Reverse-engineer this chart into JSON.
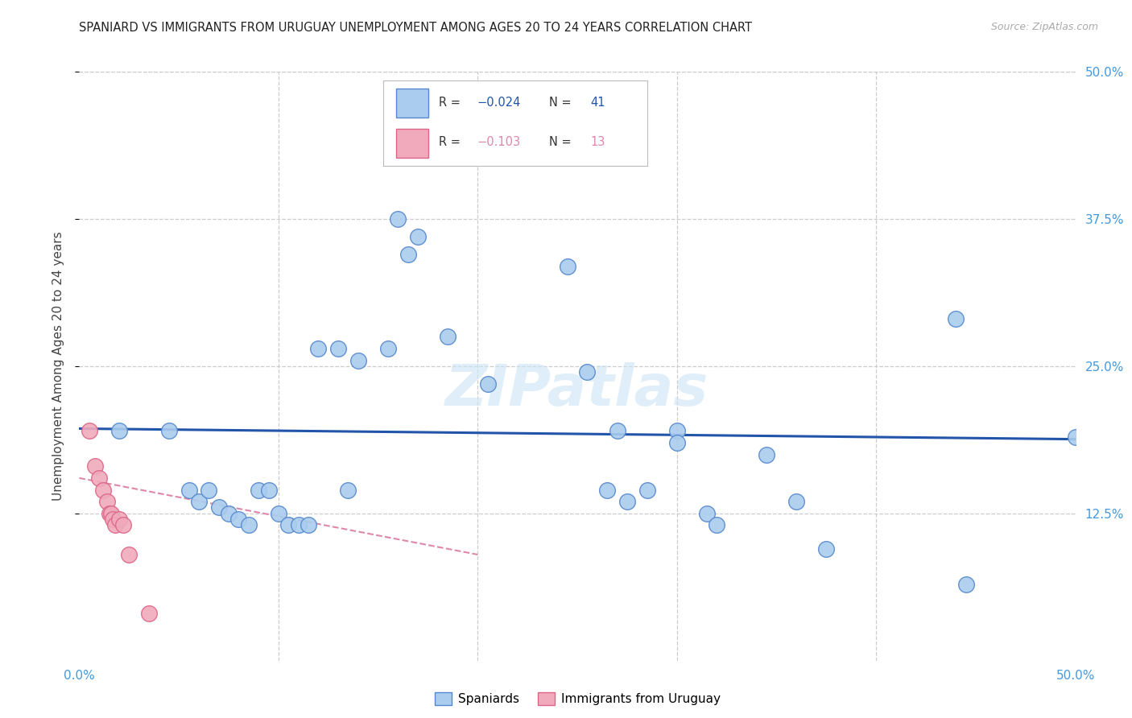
{
  "title": "SPANIARD VS IMMIGRANTS FROM URUGUAY UNEMPLOYMENT AMONG AGES 20 TO 24 YEARS CORRELATION CHART",
  "source": "Source: ZipAtlas.com",
  "ylabel": "Unemployment Among Ages 20 to 24 years",
  "xlim": [
    0,
    0.5
  ],
  "ylim": [
    0,
    0.5
  ],
  "xticks": [
    0.0,
    0.1,
    0.2,
    0.3,
    0.4,
    0.5
  ],
  "xticklabels": [
    "0.0%",
    "",
    "",
    "",
    "",
    "50.0%"
  ],
  "yticks": [
    0.125,
    0.25,
    0.375,
    0.5
  ],
  "yticklabels": [
    "12.5%",
    "25.0%",
    "37.5%",
    "50.0%"
  ],
  "blue_color": "#aaccee",
  "pink_color": "#f0aabb",
  "blue_edge_color": "#5588cc",
  "pink_edge_color": "#dd6688",
  "blue_line_color": "#2255aa",
  "pink_line_color": "#dd88aa",
  "grid_color": "#cccccc",
  "tick_color": "#4499dd",
  "watermark_color": "#cce4f5",
  "spaniards_x": [
    0.02,
    0.045,
    0.055,
    0.06,
    0.065,
    0.07,
    0.075,
    0.08,
    0.085,
    0.09,
    0.095,
    0.1,
    0.105,
    0.11,
    0.115,
    0.12,
    0.13,
    0.135,
    0.14,
    0.155,
    0.16,
    0.165,
    0.17,
    0.185,
    0.205,
    0.245,
    0.255,
    0.265,
    0.275,
    0.285,
    0.3,
    0.315,
    0.32,
    0.345,
    0.36,
    0.375,
    0.44,
    0.445,
    0.27,
    0.3,
    0.5
  ],
  "spaniards_y": [
    0.195,
    0.195,
    0.145,
    0.135,
    0.145,
    0.13,
    0.125,
    0.12,
    0.115,
    0.145,
    0.145,
    0.125,
    0.115,
    0.115,
    0.115,
    0.265,
    0.265,
    0.145,
    0.255,
    0.265,
    0.375,
    0.345,
    0.36,
    0.275,
    0.235,
    0.335,
    0.245,
    0.145,
    0.135,
    0.145,
    0.195,
    0.125,
    0.115,
    0.175,
    0.135,
    0.095,
    0.29,
    0.065,
    0.195,
    0.185,
    0.19
  ],
  "uruguay_x": [
    0.005,
    0.008,
    0.01,
    0.012,
    0.014,
    0.015,
    0.016,
    0.017,
    0.018,
    0.02,
    0.022,
    0.025,
    0.035
  ],
  "uruguay_y": [
    0.195,
    0.165,
    0.155,
    0.145,
    0.135,
    0.125,
    0.125,
    0.12,
    0.115,
    0.12,
    0.115,
    0.09,
    0.04
  ],
  "blue_trend_x": [
    0.0,
    0.5
  ],
  "blue_trend_y": [
    0.197,
    0.188
  ],
  "pink_trend_x": [
    0.0,
    0.2
  ],
  "pink_trend_y": [
    0.155,
    0.09
  ]
}
